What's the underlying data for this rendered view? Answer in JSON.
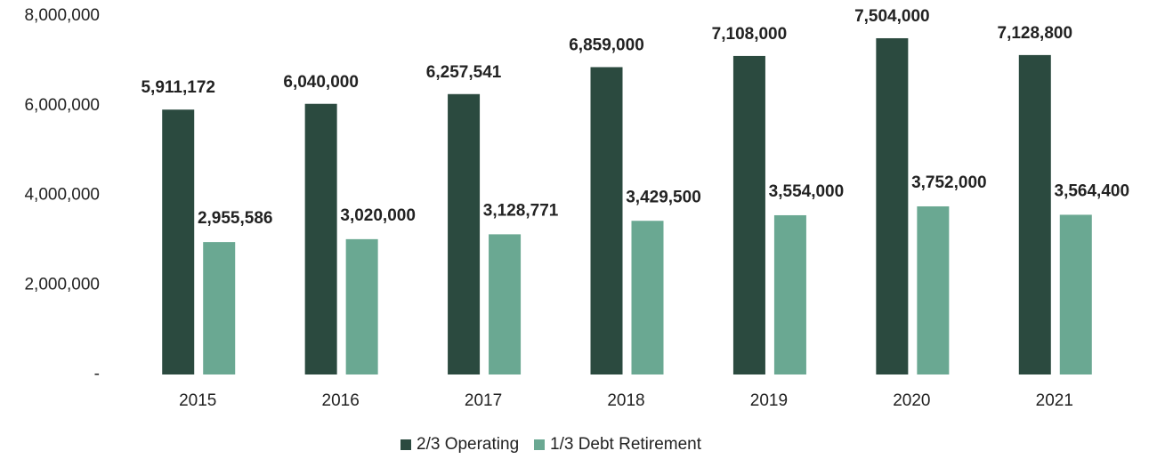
{
  "chart_data": {
    "type": "bar",
    "categories": [
      "2015",
      "2016",
      "2017",
      "2018",
      "2019",
      "2020",
      "2021"
    ],
    "series": [
      {
        "name": "2/3 Operating",
        "color": "#2b4a3f",
        "values": [
          5911172,
          6040000,
          6257541,
          6859000,
          7108000,
          7504000,
          7128800
        ],
        "value_labels": [
          "5,911,172",
          "6,040,000",
          "6,257,541",
          "6,859,000",
          "7,108,000",
          "7,504,000",
          "7,128,800"
        ]
      },
      {
        "name": "1/3 Debt Retirement",
        "color": "#6aa892",
        "values": [
          2955586,
          3020000,
          3128771,
          3429500,
          3554000,
          3752000,
          3564400
        ],
        "value_labels": [
          "2,955,586",
          "3,020,000",
          "3,128,771",
          "3,429,500",
          "3,554,000",
          "3,752,000",
          "3,564,400"
        ]
      }
    ],
    "ylim": [
      0,
      8000000
    ],
    "yticks": [
      {
        "value": 0,
        "label": "-"
      },
      {
        "value": 2000000,
        "label": "2,000,000"
      },
      {
        "value": 4000000,
        "label": "4,000,000"
      },
      {
        "value": 6000000,
        "label": "6,000,000"
      },
      {
        "value": 8000000,
        "label": "8,000,000"
      }
    ],
    "legend": "bottom"
  }
}
